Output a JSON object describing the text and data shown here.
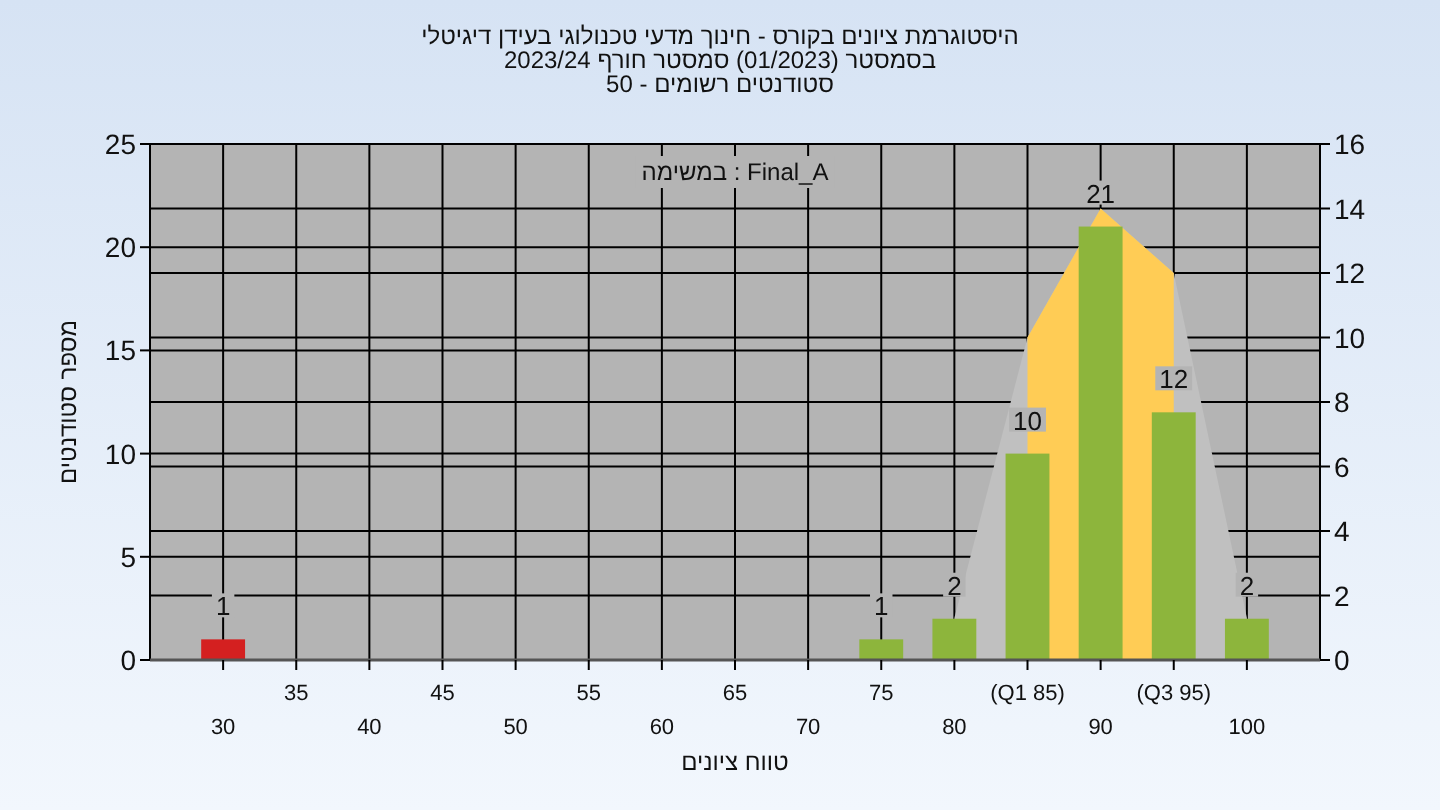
{
  "chart_data": {
    "type": "bar",
    "title": "היסטוגרמת ציונים בקורס - חינוך מדעי טכנולוגי בעידן דיגיטלי",
    "subtitle": "בסמסטר (01/2023) סמסטר חורף 2023/24\nסטודנטים רשומים - 50",
    "xlabel": "טווח ציונים",
    "ylabel": "מספר סטודנטים",
    "annotations": [
      "Final_A : במשימה"
    ],
    "categories": [
      "30",
      "35",
      "40",
      "45",
      "50",
      "55",
      "60",
      "65",
      "70",
      "75",
      "80",
      "(Q1 85)",
      "90",
      "(Q3 95)",
      "100"
    ],
    "series": [
      {
        "type": "area",
        "axis": "y2",
        "color": "#c0c0c0",
        "values": [
          null,
          null,
          null,
          null,
          null,
          null,
          null,
          null,
          null,
          null,
          1.3,
          10,
          14,
          12,
          1.3
        ]
      },
      {
        "type": "area",
        "axis": "y2",
        "color": "#ffcc55",
        "values": [
          null,
          null,
          null,
          null,
          null,
          null,
          null,
          null,
          null,
          null,
          null,
          10,
          14,
          12,
          null
        ]
      },
      {
        "colors": [
          "#d42020",
          "#8db53c",
          "#8db53c",
          "#8db53c",
          "#8db53c",
          "#8db53c",
          "#8db53c",
          "#8db53c",
          "#8db53c",
          "#8db53c",
          "#8db53c",
          "#8db53c",
          "#8db53c",
          "#8db53c",
          "#8db53c"
        ],
        "values": [
          1,
          0,
          0,
          0,
          0,
          0,
          0,
          0,
          0,
          1,
          2,
          10,
          21,
          12,
          2
        ],
        "value_labels": [
          "1",
          null,
          null,
          null,
          null,
          null,
          null,
          null,
          null,
          "1",
          "2",
          "10",
          "21",
          "12",
          "2"
        ]
      }
    ],
    "ylim": [
      0,
      25
    ],
    "yticks": [
      0,
      5,
      10,
      15,
      20,
      25
    ],
    "y2lim": [
      0,
      16
    ],
    "y2ticks": [
      0,
      2,
      4,
      6,
      8,
      10,
      12,
      14,
      16
    ],
    "grid": true
  }
}
